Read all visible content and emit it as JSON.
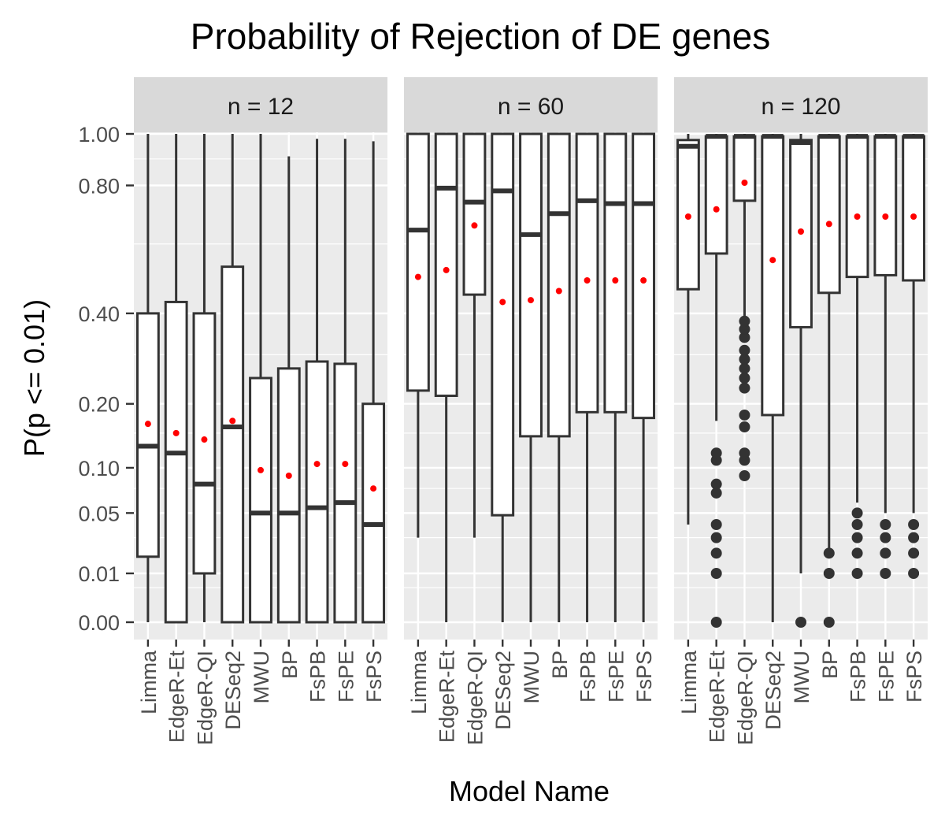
{
  "chart_data": {
    "type": "box",
    "title": "Probability of Rejection of DE genes",
    "xlabel": "Model Name",
    "ylabel": "P(p <= 0.01)",
    "y_scale": "sqrt",
    "ylim": [
      0,
      1.17
    ],
    "y_ticks": [
      0.0,
      0.01,
      0.05,
      0.1,
      0.2,
      0.4,
      0.8,
      1.0
    ],
    "y_tick_labels": [
      "0.00",
      "0.01",
      "0.05",
      "0.10",
      "0.20",
      "0.40",
      "0.80",
      "1.00"
    ],
    "categories": [
      "Limma",
      "EdgeR-Et",
      "EdgeR-QI",
      "DESeq2",
      "MWU",
      "BP",
      "FsPB",
      "FsPE",
      "FsPS"
    ],
    "grid": true,
    "legend": "none",
    "colors": {
      "panel_background": "#ebebeb",
      "strip_background": "#d9d9d9",
      "grid": "#ffffff",
      "box_fill": "#ffffff",
      "box_line": "#333333",
      "mean_point": "#ff0000"
    },
    "panels": [
      {
        "label": "n = 12",
        "boxes": [
          {
            "name": "Limma",
            "whisker_low": 0.0,
            "q1": 0.018,
            "median": 0.13,
            "q3": 0.4,
            "whisker_high": 1.0,
            "mean": 0.165,
            "outliers": []
          },
          {
            "name": "EdgeR-Et",
            "whisker_low": 0.0,
            "q1": 0.0,
            "median": 0.12,
            "q3": 0.43,
            "whisker_high": 1.0,
            "mean": 0.15,
            "outliers": []
          },
          {
            "name": "EdgeR-QI",
            "whisker_low": 0.0,
            "q1": 0.01,
            "median": 0.08,
            "q3": 0.4,
            "whisker_high": 1.0,
            "mean": 0.14,
            "outliers": []
          },
          {
            "name": "DESeq2",
            "whisker_low": 0.0,
            "q1": 0.0,
            "median": 0.16,
            "q3": 0.53,
            "whisker_high": 1.0,
            "mean": 0.17,
            "outliers": []
          },
          {
            "name": "MWU",
            "whisker_low": 0.0,
            "q1": 0.0,
            "median": 0.05,
            "q3": 0.25,
            "whisker_high": 1.0,
            "mean": 0.097,
            "outliers": []
          },
          {
            "name": "BP",
            "whisker_low": 0.0,
            "q1": 0.0,
            "median": 0.05,
            "q3": 0.27,
            "whisker_high": 0.91,
            "mean": 0.09,
            "outliers": []
          },
          {
            "name": "FsPB",
            "whisker_low": 0.0,
            "q1": 0.0,
            "median": 0.055,
            "q3": 0.285,
            "whisker_high": 0.98,
            "mean": 0.105,
            "outliers": []
          },
          {
            "name": "FsPE",
            "whisker_low": 0.0,
            "q1": 0.0,
            "median": 0.06,
            "q3": 0.28,
            "whisker_high": 0.98,
            "mean": 0.105,
            "outliers": []
          },
          {
            "name": "FsPS",
            "whisker_low": 0.0,
            "q1": 0.0,
            "median": 0.04,
            "q3": 0.2,
            "whisker_high": 0.97,
            "mean": 0.075,
            "outliers": []
          }
        ]
      },
      {
        "label": "n = 60",
        "boxes": [
          {
            "name": "Limma",
            "whisker_low": 0.03,
            "q1": 0.225,
            "median": 0.645,
            "q3": 1.0,
            "whisker_high": 1.0,
            "mean": 0.5,
            "outliers": []
          },
          {
            "name": "EdgeR-Et",
            "whisker_low": 0.0,
            "q1": 0.215,
            "median": 0.79,
            "q3": 1.0,
            "whisker_high": 1.0,
            "mean": 0.52,
            "outliers": []
          },
          {
            "name": "EdgeR-QI",
            "whisker_low": 0.03,
            "q1": 0.45,
            "median": 0.74,
            "q3": 1.0,
            "whisker_high": 1.0,
            "mean": 0.66,
            "outliers": []
          },
          {
            "name": "DESeq2",
            "whisker_low": 0.0,
            "q1": 0.048,
            "median": 0.78,
            "q3": 1.0,
            "whisker_high": 1.0,
            "mean": 0.43,
            "outliers": []
          },
          {
            "name": "MWU",
            "whisker_low": 0.0,
            "q1": 0.145,
            "median": 0.63,
            "q3": 1.0,
            "whisker_high": 1.0,
            "mean": 0.435,
            "outliers": []
          },
          {
            "name": "BP",
            "whisker_low": 0.0,
            "q1": 0.145,
            "median": 0.7,
            "q3": 1.0,
            "whisker_high": 1.0,
            "mean": 0.46,
            "outliers": []
          },
          {
            "name": "FsPB",
            "whisker_low": 0.0,
            "q1": 0.185,
            "median": 0.745,
            "q3": 1.0,
            "whisker_high": 1.0,
            "mean": 0.49,
            "outliers": []
          },
          {
            "name": "FsPE",
            "whisker_low": 0.0,
            "q1": 0.185,
            "median": 0.735,
            "q3": 1.0,
            "whisker_high": 1.0,
            "mean": 0.49,
            "outliers": []
          },
          {
            "name": "FsPS",
            "whisker_low": 0.0,
            "q1": 0.175,
            "median": 0.735,
            "q3": 1.0,
            "whisker_high": 1.0,
            "mean": 0.49,
            "outliers": []
          }
        ]
      },
      {
        "label": "n = 120",
        "boxes": [
          {
            "name": "Limma",
            "whisker_low": 0.04,
            "q1": 0.465,
            "median": 0.95,
            "q3": 0.975,
            "whisker_high": 1.0,
            "mean": 0.69,
            "outliers": []
          },
          {
            "name": "EdgeR-Et",
            "whisker_low": 0.17,
            "q1": 0.57,
            "median": 0.99,
            "q3": 0.99,
            "whisker_high": 1.0,
            "mean": 0.715,
            "outliers": [
              0.0,
              0.01,
              0.02,
              0.03,
              0.04,
              0.07,
              0.08,
              0.11,
              0.12
            ]
          },
          {
            "name": "EdgeR-QI",
            "whisker_low": 0.38,
            "q1": 0.745,
            "median": 0.99,
            "q3": 0.99,
            "whisker_high": 1.0,
            "mean": 0.81,
            "outliers": [
              0.09,
              0.11,
              0.12,
              0.16,
              0.18,
              0.23,
              0.25,
              0.27,
              0.29,
              0.31,
              0.34,
              0.36,
              0.38
            ]
          },
          {
            "name": "DESeq2",
            "whisker_low": 0.0,
            "q1": 0.18,
            "median": 0.99,
            "q3": 0.99,
            "whisker_high": 1.0,
            "mean": 0.55,
            "outliers": []
          },
          {
            "name": "MWU",
            "whisker_low": 0.01,
            "q1": 0.365,
            "median": 0.965,
            "q3": 0.975,
            "whisker_high": 1.0,
            "mean": 0.64,
            "outliers": [
              0.0
            ]
          },
          {
            "name": "BP",
            "whisker_low": 0.02,
            "q1": 0.455,
            "median": 0.99,
            "q3": 0.99,
            "whisker_high": 1.0,
            "mean": 0.665,
            "outliers": [
              0.0,
              0.01,
              0.02
            ]
          },
          {
            "name": "FsPB",
            "whisker_low": 0.06,
            "q1": 0.5,
            "median": 0.99,
            "q3": 0.99,
            "whisker_high": 1.0,
            "mean": 0.69,
            "outliers": [
              0.01,
              0.02,
              0.03,
              0.04,
              0.05
            ]
          },
          {
            "name": "FsPE",
            "whisker_low": 0.05,
            "q1": 0.505,
            "median": 0.99,
            "q3": 0.99,
            "whisker_high": 1.0,
            "mean": 0.69,
            "outliers": [
              0.01,
              0.02,
              0.03,
              0.04
            ]
          },
          {
            "name": "FsPS",
            "whisker_low": 0.05,
            "q1": 0.49,
            "median": 0.99,
            "q3": 0.99,
            "whisker_high": 1.0,
            "mean": 0.69,
            "outliers": [
              0.01,
              0.02,
              0.03,
              0.04
            ]
          }
        ]
      }
    ]
  }
}
